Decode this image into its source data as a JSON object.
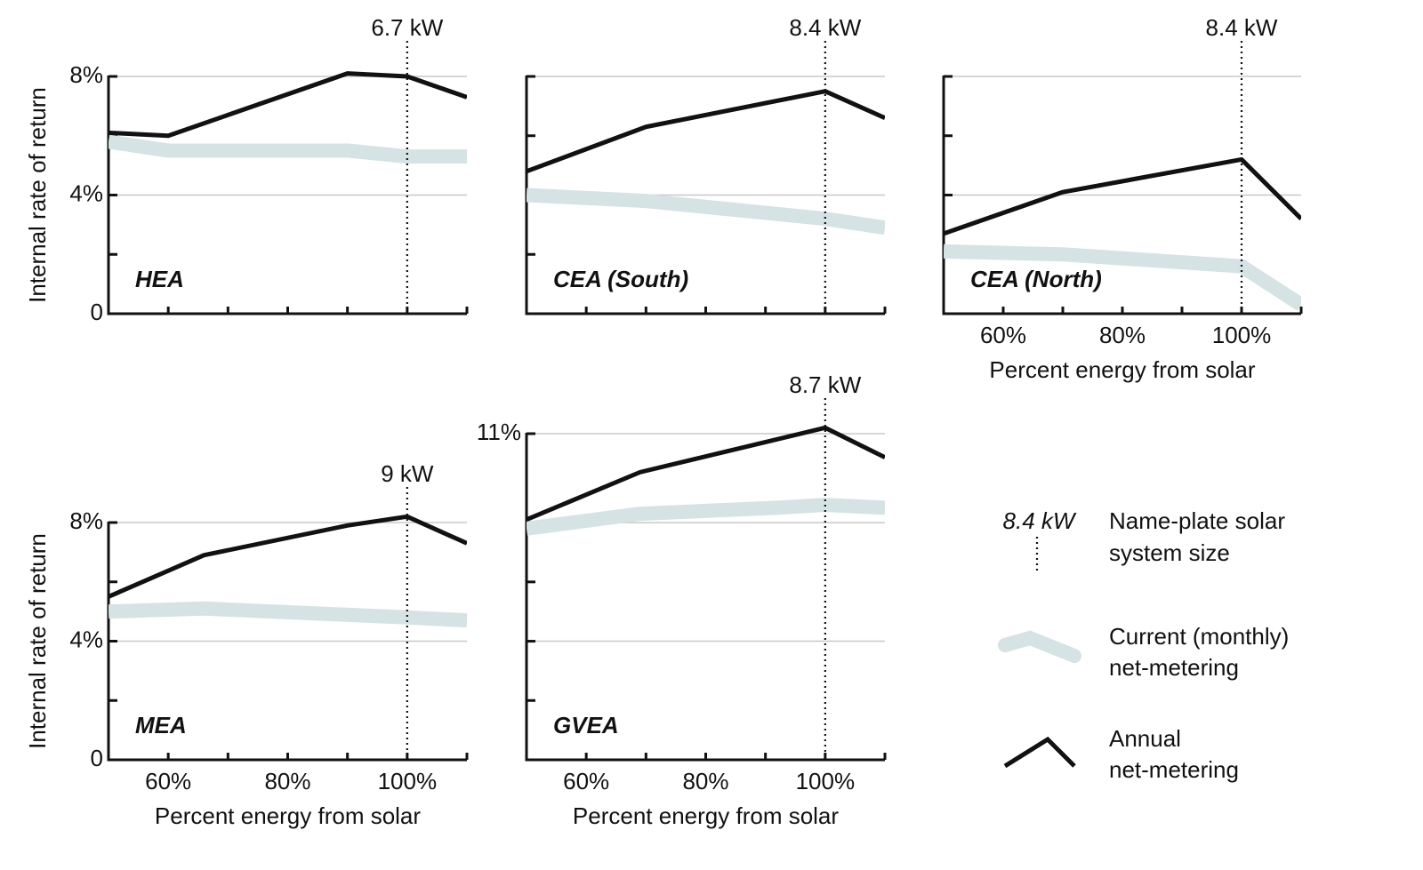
{
  "chart_data": [
    {
      "type": "line",
      "label": "HEA",
      "marker": {
        "x": 100,
        "label": "6.7 kW"
      },
      "ylabel": "Internal rate of return",
      "xlim": [
        50,
        110
      ],
      "minor_xticks": [
        60,
        70,
        80,
        90,
        100
      ],
      "ylim": [
        0,
        8
      ],
      "yticks": [
        0,
        {
          "value": 4,
          "label": "4%"
        },
        {
          "value": 8,
          "label": "8%"
        }
      ],
      "minor_yticks": [
        2,
        6
      ],
      "gridlines": [
        4,
        8
      ],
      "series": [
        {
          "color": "#d5e3e5",
          "width": 16,
          "x": [
            50,
            60,
            90,
            100,
            110
          ],
          "values": [
            5.8,
            5.5,
            5.5,
            5.3,
            5.3
          ]
        },
        {
          "color": "#111111",
          "width": 5,
          "x": [
            50,
            60,
            90,
            100,
            110
          ],
          "values": [
            6.1,
            6.0,
            8.1,
            8.0,
            7.3
          ]
        }
      ]
    },
    {
      "type": "line",
      "label": "CEA (South)",
      "marker": {
        "x": 100,
        "label": "8.4 kW"
      },
      "xlim": [
        50,
        110
      ],
      "minor_xticks": [
        60,
        70,
        80,
        90,
        100
      ],
      "ylim": [
        0,
        8
      ],
      "minor_yticks": [
        2,
        4,
        6,
        8
      ],
      "gridlines": [
        4,
        8
      ],
      "series": [
        {
          "color": "#d5e3e5",
          "width": 16,
          "x": [
            50,
            70,
            100,
            110
          ],
          "values": [
            4.0,
            3.8,
            3.2,
            2.9
          ]
        },
        {
          "color": "#111111",
          "width": 5,
          "x": [
            50,
            70,
            100,
            110
          ],
          "values": [
            4.8,
            6.3,
            7.5,
            6.6
          ]
        }
      ]
    },
    {
      "type": "line",
      "label": "CEA (North)",
      "marker": {
        "x": 100,
        "label": "8.4 kW"
      },
      "xlabel": "Percent energy from solar",
      "xlim": [
        50,
        110
      ],
      "xticks": [
        {
          "value": 60,
          "label": "60%"
        },
        {
          "value": 80,
          "label": "80%"
        },
        {
          "value": 100,
          "label": "100%"
        }
      ],
      "minor_xticks": [
        70,
        90
      ],
      "ylim": [
        0,
        8
      ],
      "minor_yticks": [
        2,
        4,
        6,
        8
      ],
      "gridlines": [
        4,
        8
      ],
      "series": [
        {
          "color": "#d5e3e5",
          "width": 16,
          "x": [
            50,
            70,
            100,
            110
          ],
          "values": [
            2.1,
            2.0,
            1.6,
            0.3
          ]
        },
        {
          "color": "#111111",
          "width": 5,
          "x": [
            50,
            70,
            100,
            110
          ],
          "values": [
            2.7,
            4.1,
            5.2,
            3.2
          ]
        }
      ]
    },
    {
      "type": "line",
      "label": "MEA",
      "marker": {
        "x": 100,
        "label": "9 kW"
      },
      "ylabel": "Internal rate of return",
      "xlabel": "Percent energy from solar",
      "xlim": [
        50,
        110
      ],
      "xticks": [
        {
          "value": 60,
          "label": "60%"
        },
        {
          "value": 80,
          "label": "80%"
        },
        {
          "value": 100,
          "label": "100%"
        }
      ],
      "minor_xticks": [
        70,
        90
      ],
      "ylim": [
        0,
        8
      ],
      "yticks": [
        0,
        {
          "value": 4,
          "label": "4%"
        },
        {
          "value": 8,
          "label": "8%"
        }
      ],
      "minor_yticks": [
        2,
        6
      ],
      "gridlines": [
        4,
        8
      ],
      "series": [
        {
          "color": "#d5e3e5",
          "width": 16,
          "x": [
            50,
            66,
            100,
            110
          ],
          "values": [
            5.0,
            5.1,
            4.8,
            4.7
          ]
        },
        {
          "color": "#111111",
          "width": 5,
          "x": [
            50,
            66,
            90,
            100,
            110
          ],
          "values": [
            5.5,
            6.9,
            7.9,
            8.2,
            7.3
          ]
        }
      ]
    },
    {
      "type": "line",
      "label": "GVEA",
      "marker": {
        "x": 100,
        "label": "8.7 kW"
      },
      "xlabel": "Percent energy from solar",
      "xlim": [
        50,
        110
      ],
      "xticks": [
        {
          "value": 60,
          "label": "60%"
        },
        {
          "value": 80,
          "label": "80%"
        },
        {
          "value": 100,
          "label": "100%"
        }
      ],
      "minor_xticks": [
        70,
        90
      ],
      "ylim": [
        0,
        11
      ],
      "yticks": [
        {
          "value": 11,
          "label": "11%"
        }
      ],
      "minor_yticks": [
        2,
        4,
        6,
        8
      ],
      "gridlines": [
        4,
        8,
        11
      ],
      "series": [
        {
          "color": "#d5e3e5",
          "width": 16,
          "x": [
            50,
            69,
            92,
            100,
            110
          ],
          "values": [
            7.8,
            8.3,
            8.5,
            8.6,
            8.5
          ]
        },
        {
          "color": "#111111",
          "width": 5,
          "x": [
            50,
            69,
            100,
            110
          ],
          "values": [
            8.1,
            9.7,
            11.2,
            10.2
          ]
        }
      ]
    }
  ],
  "legend": {
    "marker": {
      "label": "8.4 kW",
      "text": [
        "Name-plate solar",
        "system size"
      ]
    },
    "series": [
      {
        "color": "#d5e3e5",
        "width": 16,
        "text": [
          "Current (monthly)",
          "net-metering"
        ]
      },
      {
        "color": "#111111",
        "width": 5,
        "text": [
          "Annual",
          "net-metering"
        ]
      }
    ]
  }
}
